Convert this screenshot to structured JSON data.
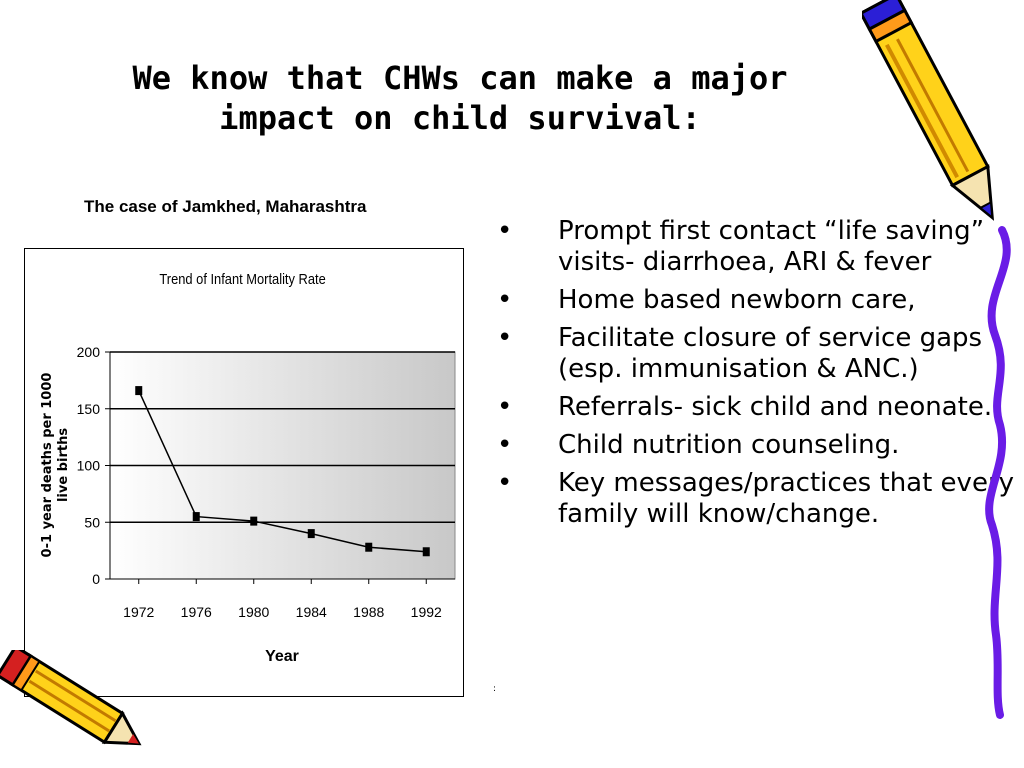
{
  "slide": {
    "title": "We know that CHWs can make a major impact on child survival:",
    "subtitle": "The case of Jamkhed, Maharashtra",
    "footnote_mark": ":"
  },
  "bullets": [
    {
      "marker": "•",
      "text": "Prompt  first contact “life saving” visits- diarrhoea, ARI & fever"
    },
    {
      "marker": "•",
      "text": "Home based  newborn care,"
    },
    {
      "marker": "•",
      "text": "Facilitate closure of service gaps (esp. immunisation & ANC.)"
    },
    {
      "marker": "•",
      "text": "Referrals- sick child and neonate."
    },
    {
      "marker": "•",
      "text": "Child nutrition counseling."
    },
    {
      "marker": "•",
      "text": "Key messages/practices that every family will know/change."
    }
  ],
  "chart_data": {
    "type": "line",
    "title": "Trend of Infant Mortality Rate",
    "xlabel": "Year",
    "ylabel": "0-1 year deaths per 1000 live births",
    "categories": [
      "1972",
      "1976",
      "1980",
      "1984",
      "1988",
      "1992"
    ],
    "series": [
      {
        "values": [
          166,
          55,
          51,
          40,
          28,
          24
        ]
      }
    ],
    "ylim": [
      0,
      200
    ],
    "yticks": [
      0,
      50,
      100,
      150,
      200
    ],
    "grid": true,
    "legend": "none",
    "colors": {
      "line": "#000000",
      "marker": "#000000",
      "plot_bg_light": "#ffffff",
      "plot_bg_dark": "#c8c8c8"
    }
  },
  "decorations": [
    "pencil-icon-top-right",
    "pencil-icon-bottom-left",
    "squiggle-line-right"
  ],
  "colors": {
    "pencil_yellow": "#ffd21a",
    "pencil_blue": "#2b1fd6",
    "pencil_red": "#d42020",
    "squiggle": "#6a1ce6"
  }
}
